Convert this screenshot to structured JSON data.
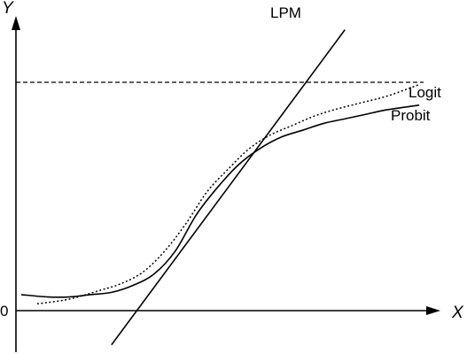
{
  "chart_data": {
    "type": "line",
    "title": "",
    "xlabel": "X",
    "ylabel": "Y",
    "y_tick_labels": [
      "0"
    ],
    "x_range": [
      -4,
      4
    ],
    "y_range": [
      -0.15,
      1.25
    ],
    "upper_bound": 1,
    "grid": false,
    "legend": "none",
    "series": [
      {
        "name": "LPM",
        "style": "solid",
        "x": [
          -2.2,
          2.2
        ],
        "y": [
          -0.15,
          1.23
        ]
      },
      {
        "name": "Logit",
        "style": "dotted",
        "x": [
          -3.6,
          -3.0,
          -2.4,
          -2.0,
          -1.6,
          -1.2,
          -0.8,
          -0.4,
          0.0,
          0.4,
          0.8,
          1.2,
          1.6,
          2.0,
          2.5,
          3.0,
          3.6
        ],
        "y": [
          0.03,
          0.05,
          0.09,
          0.12,
          0.17,
          0.26,
          0.38,
          0.52,
          0.62,
          0.71,
          0.77,
          0.81,
          0.85,
          0.88,
          0.91,
          0.94,
          0.99
        ]
      },
      {
        "name": "Probit",
        "style": "solid",
        "x": [
          -3.9,
          -3.4,
          -3.0,
          -2.6,
          -2.2,
          -1.8,
          -1.4,
          -1.0,
          -0.6,
          -0.2,
          0.2,
          0.6,
          1.0,
          1.4,
          1.8,
          2.2,
          2.6,
          3.0,
          3.6
        ],
        "y": [
          0.07,
          0.06,
          0.06,
          0.07,
          0.08,
          0.11,
          0.16,
          0.26,
          0.42,
          0.54,
          0.64,
          0.71,
          0.76,
          0.79,
          0.82,
          0.84,
          0.86,
          0.88,
          0.9
        ]
      }
    ]
  }
}
